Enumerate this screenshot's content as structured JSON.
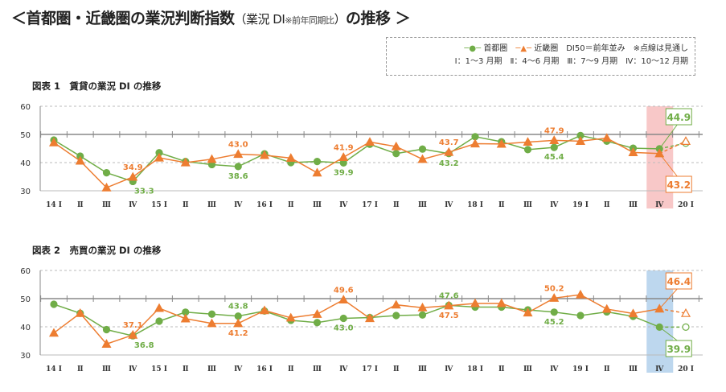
{
  "header": {
    "title_main": "＜首都圏・近畿圏の業況判断指数",
    "title_paren_open": "（業況 DI",
    "title_note": "※前年同期比",
    "title_paren_close": "）",
    "title_end": "の推移 ＞"
  },
  "legend": {
    "series1": "首都圏",
    "series2": "近畿圏",
    "baseline": "DI50＝前年並み",
    "dotted_note": "※点線は見通し",
    "quarters": "Ⅰ：1～3 月期　Ⅱ：4～6 月期　Ⅲ：7～9 月期　Ⅳ：10～12 月期"
  },
  "colors": {
    "tokyo": "#70ad47",
    "kinki": "#ed7d31",
    "highlight1": "#f8c8c8",
    "highlight2": "#bdd7ee"
  },
  "chart_data": [
    {
      "type": "line",
      "title": "図表 1　賃貸の業況 DI の推移",
      "ylim": [
        30,
        60
      ],
      "yticks": [
        30,
        40,
        50,
        60
      ],
      "grid": true,
      "categories": [
        "14 Ⅰ",
        "Ⅱ",
        "Ⅲ",
        "Ⅳ",
        "15 Ⅰ",
        "Ⅱ",
        "Ⅲ",
        "Ⅳ",
        "16 Ⅰ",
        "Ⅱ",
        "Ⅲ",
        "Ⅳ",
        "17 Ⅰ",
        "Ⅱ",
        "Ⅲ",
        "Ⅳ",
        "18 Ⅰ",
        "Ⅱ",
        "Ⅲ",
        "Ⅳ",
        "19 Ⅰ",
        "Ⅱ",
        "Ⅲ",
        "Ⅳ",
        "20 Ⅰ"
      ],
      "highlight": "Ⅳ (19)",
      "forecast_last_point": true,
      "series": [
        {
          "name": "首都圏",
          "values": [
            48.0,
            42.3,
            36.4,
            33.3,
            43.5,
            40.4,
            39.3,
            38.6,
            43.1,
            40.0,
            40.4,
            39.9,
            46.5,
            43.2,
            44.8,
            43.2,
            49.2,
            47.4,
            44.6,
            45.4,
            49.6,
            47.6,
            45.1,
            44.9,
            46.9
          ],
          "labels": {
            "3": "33.3",
            "7": "38.6",
            "11": "39.9",
            "15": "43.2",
            "19": "45.4"
          },
          "boxed": {
            "23": "44.9"
          }
        },
        {
          "name": "近畿圏",
          "values": [
            47.1,
            40.6,
            31.1,
            34.9,
            41.7,
            40.0,
            41.2,
            43.0,
            42.6,
            41.6,
            36.4,
            41.9,
            47.3,
            45.7,
            41.2,
            43.7,
            46.7,
            46.6,
            47.3,
            47.9,
            47.6,
            48.7,
            43.6,
            43.2,
            47.6
          ],
          "labels": {
            "3": "34.9",
            "7": "43.0",
            "11": "41.9",
            "15": "43.7",
            "19": "47.9"
          },
          "boxed": {
            "23": "43.2"
          }
        }
      ]
    },
    {
      "type": "line",
      "title": "図表 2　売買の業況 DI の推移",
      "ylim": [
        30,
        60
      ],
      "yticks": [
        30,
        40,
        50,
        60
      ],
      "grid": true,
      "categories": [
        "14 Ⅰ",
        "Ⅱ",
        "Ⅲ",
        "Ⅳ",
        "15 Ⅰ",
        "Ⅱ",
        "Ⅲ",
        "Ⅳ",
        "16 Ⅰ",
        "Ⅱ",
        "Ⅲ",
        "Ⅳ",
        "17 Ⅰ",
        "Ⅱ",
        "Ⅲ",
        "Ⅳ",
        "18 Ⅰ",
        "Ⅱ",
        "Ⅲ",
        "Ⅳ",
        "19 Ⅰ",
        "Ⅱ",
        "Ⅲ",
        "Ⅳ",
        "20 Ⅰ"
      ],
      "highlight": "Ⅳ (19)",
      "forecast_last_point": true,
      "series": [
        {
          "name": "首都圏",
          "values": [
            48.0,
            44.8,
            39.0,
            36.8,
            42.0,
            45.2,
            44.5,
            43.8,
            45.6,
            42.3,
            41.5,
            43.0,
            43.3,
            44.0,
            44.2,
            47.6,
            47.0,
            47.0,
            46.0,
            45.2,
            44.0,
            45.3,
            43.7,
            39.9,
            39.9
          ],
          "labels": {
            "3": "36.8",
            "7": "43.8",
            "11": "43.0",
            "15": "47.6",
            "19": "45.2"
          },
          "boxed": {
            "23": "39.9"
          }
        },
        {
          "name": "近畿圏",
          "values": [
            37.8,
            44.8,
            33.9,
            37.1,
            46.6,
            42.9,
            41.2,
            41.2,
            45.8,
            43.2,
            44.5,
            49.6,
            43.0,
            47.8,
            46.8,
            47.5,
            48.3,
            48.3,
            45.0,
            50.2,
            51.4,
            46.3,
            44.7,
            46.4,
            44.8
          ],
          "labels": {
            "3": "37.1",
            "7": "41.2",
            "11": "49.6",
            "15": "47.5",
            "19": "50.2"
          },
          "boxed": {
            "23": "46.4"
          }
        }
      ]
    }
  ]
}
